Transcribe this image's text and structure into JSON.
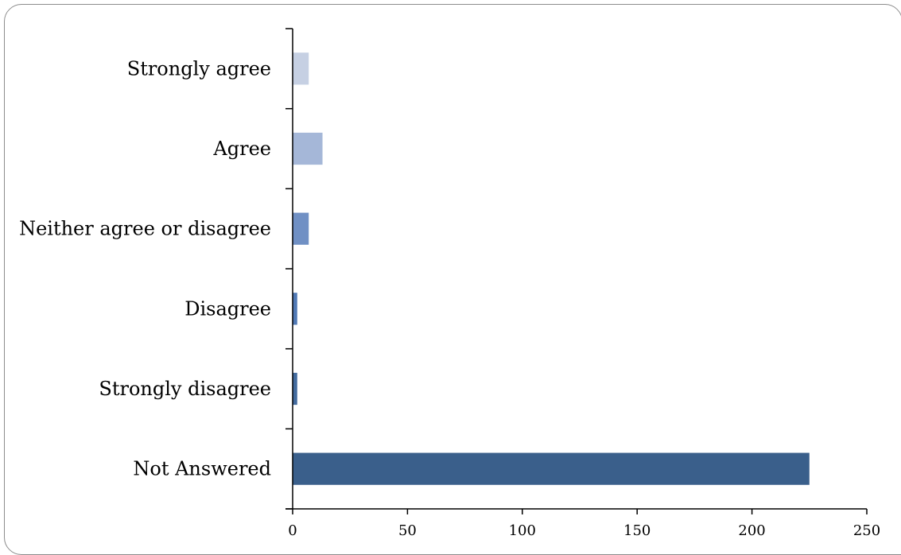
{
  "chart_data": {
    "type": "bar",
    "orientation": "horizontal",
    "categories": [
      "Strongly agree",
      "Agree",
      "Neither agree or disagree",
      "Disagree",
      "Strongly disagree",
      "Not Answered"
    ],
    "values": [
      7,
      13,
      7,
      2,
      2,
      225
    ],
    "colors": [
      "#c6d0e3",
      "#a5b7d8",
      "#7090c4",
      "#5079b5",
      "#436b9e",
      "#3a5f8b"
    ],
    "xlim": [
      0,
      250
    ],
    "xticks": [
      "0",
      "50",
      "100",
      "150",
      "200",
      "250"
    ],
    "title": "",
    "xlabel": "",
    "ylabel": "",
    "grid": false,
    "legend": "none"
  }
}
